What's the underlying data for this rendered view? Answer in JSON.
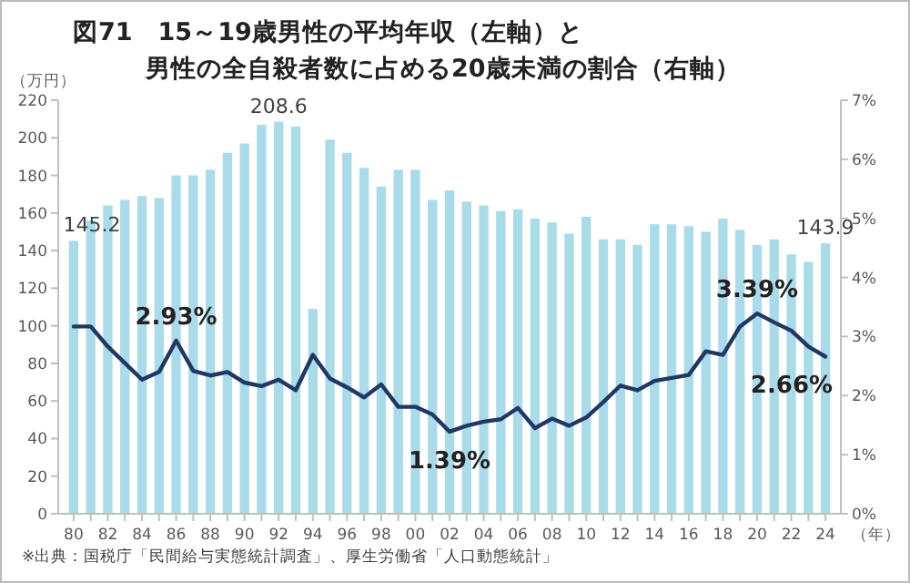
{
  "chart_data": {
    "type": "bar",
    "title": "図71　15～19歳男性の平均年収（左軸）と",
    "subtitle": "男性の全自殺者数に占める20歳未満の割合（右軸）",
    "ylabel": "（万円）",
    "xlabel": "（年）",
    "annotations": [
      "※出典：国税庁「民間給与実態統計調査」、厚生労働省「人口動態統計」"
    ],
    "categories": [
      "80",
      null,
      "82",
      null,
      "84",
      null,
      "86",
      null,
      "88",
      null,
      "90",
      null,
      "92",
      null,
      "94",
      null,
      "96",
      null,
      "98",
      null,
      "00",
      null,
      "02",
      null,
      "04",
      null,
      "06",
      null,
      "08",
      null,
      "10",
      null,
      "12",
      null,
      "14",
      null,
      "16",
      null,
      "18",
      null,
      "20",
      null,
      "22",
      null,
      "24"
    ],
    "series": [
      {
        "color": "#a9dbea",
        "values": [
          145.2,
          156,
          164,
          167,
          169,
          168,
          180,
          180,
          183,
          192,
          197,
          207,
          208.6,
          206,
          109,
          199,
          192,
          184,
          174,
          183,
          183,
          167,
          172,
          166,
          164,
          161,
          162,
          157,
          155,
          149,
          158,
          146,
          146,
          143,
          154,
          154,
          153,
          150,
          157,
          151,
          143,
          146,
          138,
          134,
          143.9
        ],
        "value_labels": [
          "145.2",
          null,
          null,
          null,
          null,
          null,
          null,
          null,
          null,
          null,
          null,
          null,
          "208.6",
          null,
          null,
          null,
          null,
          null,
          null,
          null,
          null,
          null,
          null,
          null,
          null,
          null,
          null,
          null,
          null,
          null,
          null,
          null,
          null,
          null,
          null,
          null,
          null,
          null,
          null,
          null,
          null,
          null,
          null,
          null,
          "143.9"
        ]
      },
      {
        "type": "line",
        "axis": "y2",
        "color": "#1f3864",
        "values": [
          3.17,
          3.17,
          2.83,
          2.55,
          2.27,
          2.4,
          2.93,
          2.42,
          2.34,
          2.4,
          2.22,
          2.16,
          2.27,
          2.09,
          2.69,
          2.29,
          2.14,
          1.97,
          2.19,
          1.81,
          1.81,
          1.68,
          1.39,
          1.49,
          1.56,
          1.6,
          1.79,
          1.45,
          1.61,
          1.49,
          1.63,
          1.89,
          2.17,
          2.09,
          2.25,
          2.3,
          2.35,
          2.75,
          2.69,
          3.17,
          3.39,
          3.24,
          3.1,
          2.83,
          2.66
        ],
        "value_labels": [
          null,
          null,
          null,
          null,
          null,
          null,
          "2.93%",
          null,
          null,
          null,
          null,
          null,
          null,
          null,
          null,
          null,
          null,
          null,
          null,
          null,
          null,
          null,
          "1.39%",
          null,
          null,
          null,
          null,
          null,
          null,
          null,
          null,
          null,
          null,
          null,
          null,
          null,
          null,
          null,
          null,
          null,
          "3.39%",
          null,
          null,
          null,
          "2.66%"
        ]
      }
    ],
    "ylim": [
      0,
      220
    ],
    "yticks": [
      0,
      20,
      40,
      60,
      80,
      100,
      120,
      140,
      160,
      180,
      200,
      220
    ],
    "y2lim": [
      0,
      7
    ],
    "y2ticks": [
      {
        "value": 0,
        "label": "0%"
      },
      {
        "value": 1,
        "label": "1%"
      },
      {
        "value": 2,
        "label": "2%"
      },
      {
        "value": 3,
        "label": "3%"
      },
      {
        "value": 4,
        "label": "4%"
      },
      {
        "value": 5,
        "label": "5%"
      },
      {
        "value": 6,
        "label": "6%"
      },
      {
        "value": 7,
        "label": "7%"
      }
    ],
    "grid": false
  }
}
